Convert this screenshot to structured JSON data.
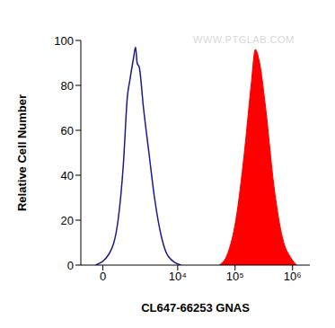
{
  "chart_data": {
    "type": "line",
    "x_label": "CL647-66253 GNAS",
    "y_label": "Relative Cell Number",
    "annotations": [
      "WWW.PTGLAB.COM"
    ],
    "xlim": [
      -1000,
      2000000
    ],
    "xticks": [
      0,
      {
        "value": 10000,
        "label": "10⁴"
      },
      {
        "value": 100000,
        "label": "10⁵"
      },
      {
        "value": 1000000,
        "label": "10⁶"
      }
    ],
    "ylim": [
      0,
      100
    ],
    "yticks": [
      0,
      20,
      40,
      60,
      80,
      100
    ],
    "grid": false,
    "series": [
      {
        "type": "line",
        "color": "#1a1a8c",
        "x": [
          -290,
          254,
          650,
          920,
          1150,
          1300,
          1560,
          1720,
          1850,
          2040,
          2450,
          3090,
          3900,
          5250,
          6800,
          11400
        ],
        "values": [
          0,
          5,
          20,
          45,
          75,
          82,
          92,
          97,
          90,
          88,
          70,
          50,
          30,
          12,
          4,
          0
        ]
      },
      {
        "type": "area",
        "color": "#ff0000",
        "x": [
          53000,
          74000,
          103000,
          145000,
          190000,
          225000,
          267000,
          340000,
          475000,
          670000,
          950000,
          1180000
        ],
        "values": [
          0,
          5,
          20,
          50,
          80,
          96,
          90,
          70,
          35,
          12,
          3,
          0
        ]
      }
    ]
  }
}
